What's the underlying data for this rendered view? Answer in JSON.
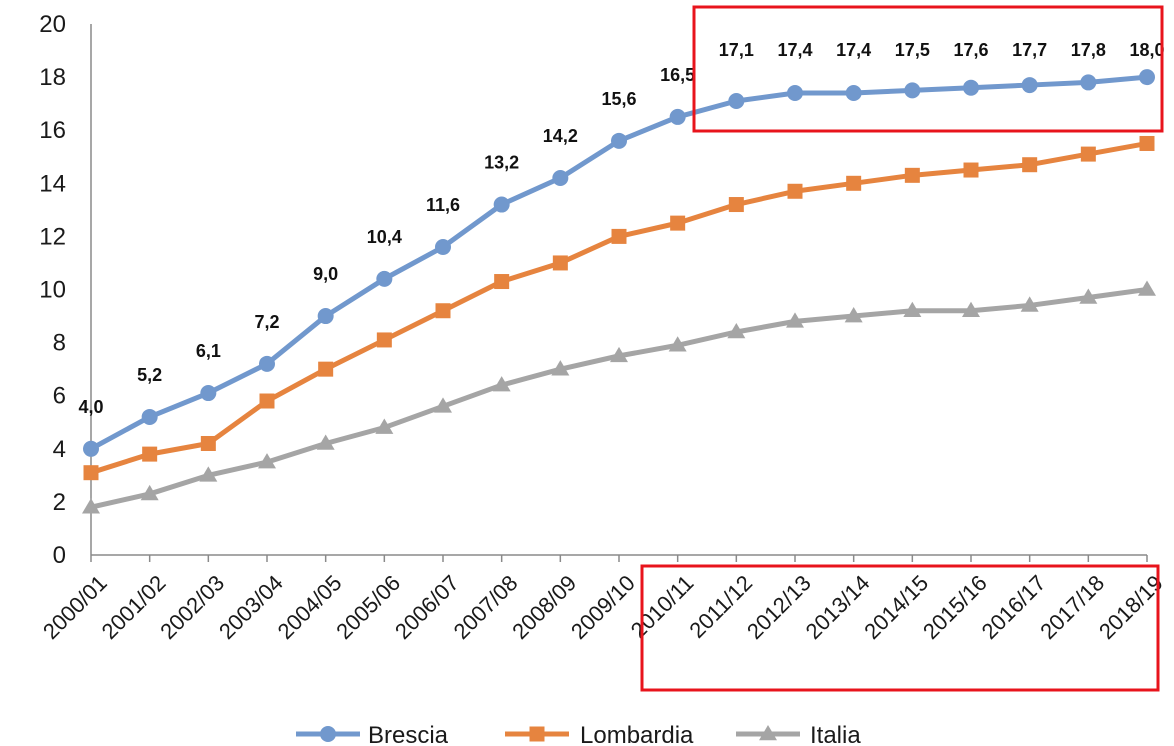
{
  "chart_data": {
    "type": "line",
    "title": "",
    "xlabel": "",
    "ylabel": "",
    "ylim": [
      0,
      20
    ],
    "yticks": [
      0,
      2,
      4,
      6,
      8,
      10,
      12,
      14,
      16,
      18,
      20
    ],
    "ytick_labels": [
      "0",
      "2",
      "4",
      "6",
      "8",
      "10",
      "12",
      "14",
      "16",
      "18",
      "20"
    ],
    "categories": [
      "2000/01",
      "2001/02",
      "2002/03",
      "2003/04",
      "2004/05",
      "2005/06",
      "2006/07",
      "2007/08",
      "2008/09",
      "2009/10",
      "2010/11",
      "2011/12",
      "2012/13",
      "2013/14",
      "2014/15",
      "2015/16",
      "2016/17",
      "2017/18",
      "2018/19"
    ],
    "grid": false,
    "legend_position": "bottom",
    "series": [
      {
        "name": "Brescia",
        "color": "#7198cd",
        "marker": "circle",
        "values": [
          4.0,
          5.2,
          6.1,
          7.2,
          9.0,
          10.4,
          11.6,
          13.2,
          14.2,
          15.6,
          16.5,
          17.1,
          17.4,
          17.4,
          17.5,
          17.6,
          17.7,
          17.8,
          18.0
        ],
        "data_labels": [
          "4,0",
          "5,2",
          "6,1",
          "7,2",
          "9,0",
          "10,4",
          "11,6",
          "13,2",
          "14,2",
          "15,6",
          "16,5",
          "17,1",
          "17,4",
          "17,4",
          "17,5",
          "17,6",
          "17,7",
          "17,8",
          "18,0"
        ]
      },
      {
        "name": "Lombardia",
        "color": "#e6843f",
        "marker": "square",
        "values": [
          3.1,
          3.8,
          4.2,
          5.8,
          7.0,
          8.1,
          9.2,
          10.3,
          11.0,
          12.0,
          12.5,
          13.2,
          13.7,
          14.0,
          14.3,
          14.5,
          14.7,
          15.1,
          15.5
        ]
      },
      {
        "name": "Italia",
        "color": "#a5a5a5",
        "marker": "triangle",
        "values": [
          1.8,
          2.3,
          3.0,
          3.5,
          4.2,
          4.8,
          5.6,
          6.4,
          7.0,
          7.5,
          7.9,
          8.4,
          8.8,
          9.0,
          9.2,
          9.2,
          9.4,
          9.7,
          10.0
        ]
      }
    ],
    "highlight_color": "#e8141c"
  }
}
